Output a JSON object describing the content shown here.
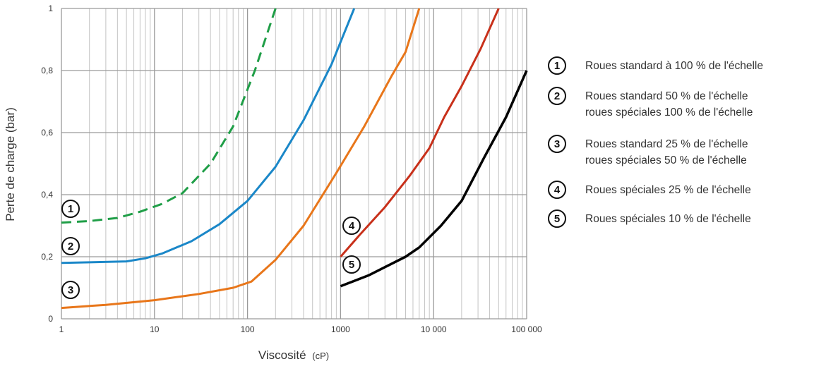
{
  "chart_data": {
    "type": "line",
    "x_scale": "log",
    "xlim": [
      1,
      100000
    ],
    "ylim": [
      0,
      1
    ],
    "grid": true,
    "xlabel": "Viscosité",
    "xlabel_unit": "(cP)",
    "ylabel": "Perte de charge (bar)",
    "x_tick_labels": [
      "1",
      "10",
      "100",
      "1000",
      "10 000",
      "100 000"
    ],
    "y_tick_labels": [
      "0",
      "0,2",
      "0,4",
      "0,6",
      "0,8",
      "1"
    ],
    "series": [
      {
        "marker": "1",
        "color": "#1f9e47",
        "dash": true,
        "points": [
          [
            1,
            0.31
          ],
          [
            2,
            0.315
          ],
          [
            4,
            0.325
          ],
          [
            7,
            0.345
          ],
          [
            12,
            0.37
          ],
          [
            20,
            0.405
          ],
          [
            40,
            0.5
          ],
          [
            70,
            0.62
          ],
          [
            120,
            0.8
          ],
          [
            200,
            1.0
          ]
        ]
      },
      {
        "marker": "2",
        "color": "#1a87c8",
        "dash": false,
        "points": [
          [
            1,
            0.18
          ],
          [
            2,
            0.182
          ],
          [
            5,
            0.185
          ],
          [
            8,
            0.195
          ],
          [
            12,
            0.21
          ],
          [
            25,
            0.25
          ],
          [
            50,
            0.305
          ],
          [
            100,
            0.38
          ],
          [
            200,
            0.49
          ],
          [
            400,
            0.64
          ],
          [
            800,
            0.82
          ],
          [
            1400,
            1.0
          ]
        ]
      },
      {
        "marker": "3",
        "color": "#e8761a",
        "dash": false,
        "points": [
          [
            1,
            0.035
          ],
          [
            3,
            0.045
          ],
          [
            10,
            0.06
          ],
          [
            30,
            0.08
          ],
          [
            70,
            0.1
          ],
          [
            110,
            0.12
          ],
          [
            200,
            0.19
          ],
          [
            400,
            0.3
          ],
          [
            900,
            0.47
          ],
          [
            1800,
            0.62
          ],
          [
            3500,
            0.78
          ],
          [
            5000,
            0.86
          ],
          [
            7000,
            1.0
          ]
        ]
      },
      {
        "marker": "4",
        "color": "#c8301a",
        "dash": false,
        "points": [
          [
            1000,
            0.2
          ],
          [
            1600,
            0.27
          ],
          [
            3000,
            0.36
          ],
          [
            5500,
            0.46
          ],
          [
            9000,
            0.55
          ],
          [
            13000,
            0.65
          ],
          [
            20000,
            0.75
          ],
          [
            32000,
            0.87
          ],
          [
            50000,
            1.0
          ]
        ]
      },
      {
        "marker": "5",
        "color": "#000000",
        "dash": false,
        "points": [
          [
            1000,
            0.105
          ],
          [
            2000,
            0.14
          ],
          [
            5000,
            0.2
          ],
          [
            7000,
            0.23
          ],
          [
            12000,
            0.3
          ],
          [
            20000,
            0.38
          ],
          [
            35000,
            0.52
          ],
          [
            60000,
            0.65
          ],
          [
            100000,
            0.8
          ]
        ]
      }
    ],
    "legend": [
      {
        "marker": "1",
        "lines": [
          "Roues standard à 100 % de l'échelle"
        ]
      },
      {
        "marker": "2",
        "lines": [
          "Roues standard 50 % de l'échelle",
          "roues spéciales 100 % de l'échelle"
        ]
      },
      {
        "marker": "3",
        "lines": [
          "Roues standard 25 % de l'échelle",
          "roues spéciales 50 % de l'échelle"
        ]
      },
      {
        "marker": "4",
        "lines": [
          "Roues spéciales 25 % de l'échelle"
        ]
      },
      {
        "marker": "5",
        "lines": [
          "Roues spéciales 10 % de l'échelle"
        ]
      }
    ],
    "legend_position": "right"
  }
}
